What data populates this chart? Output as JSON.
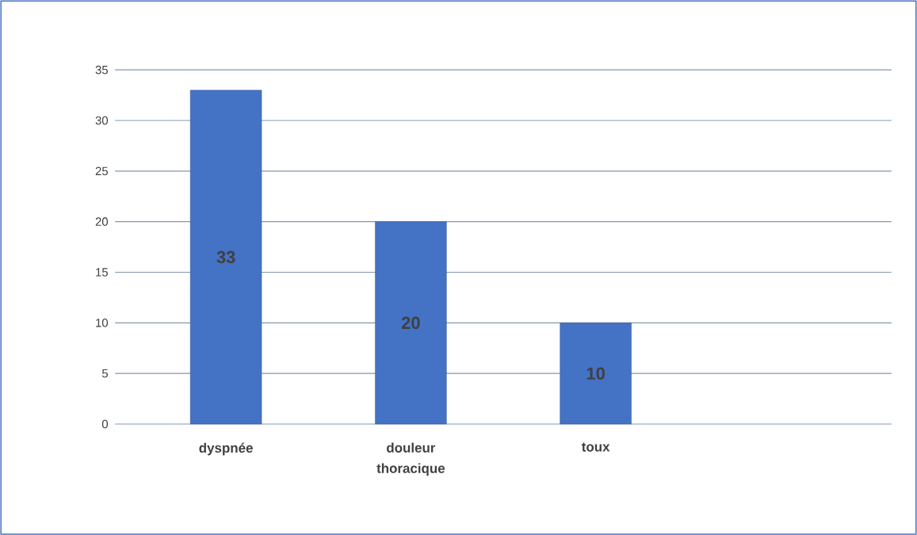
{
  "chart_data": {
    "type": "bar",
    "categories": [
      "dyspnée",
      "douleur thoracique",
      "toux",
      null
    ],
    "values": [
      33,
      20,
      10,
      null
    ],
    "color": "#4472c4",
    "ylim": [
      0,
      35
    ],
    "yticks": [
      0,
      5,
      10,
      15,
      20,
      25,
      30,
      35
    ],
    "grid": "y",
    "data_labels": true
  }
}
